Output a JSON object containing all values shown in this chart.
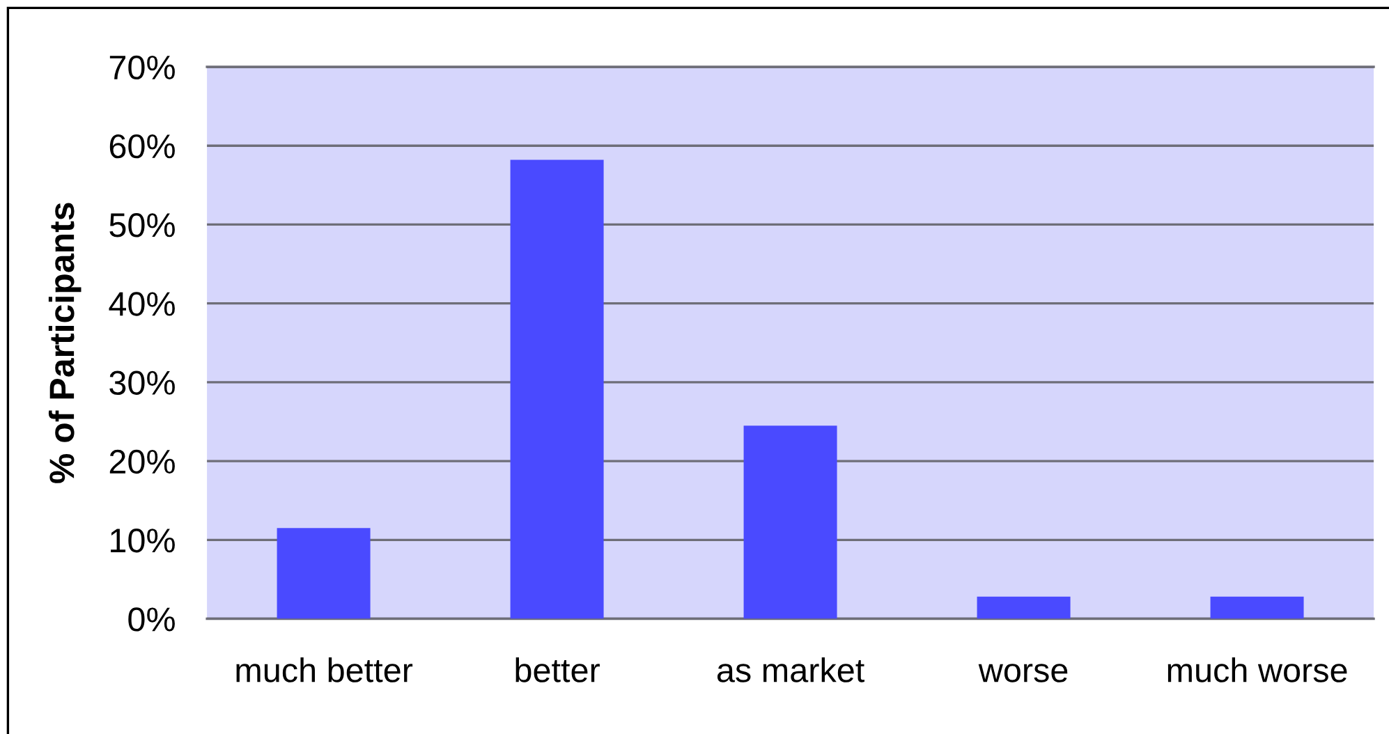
{
  "chart_data": {
    "type": "bar",
    "ylabel": "% of Participants",
    "categories": [
      "much better",
      "better",
      "as market",
      "worse",
      "much worse"
    ],
    "values": [
      11.5,
      58.2,
      24.5,
      2.8,
      2.8
    ],
    "color": "#4a4aff",
    "ylim": [
      0,
      70
    ],
    "yticks": [
      {
        "value": 0,
        "label": "0%"
      },
      {
        "value": 10,
        "label": "10%"
      },
      {
        "value": 20,
        "label": "20%"
      },
      {
        "value": 30,
        "label": "30%"
      },
      {
        "value": 40,
        "label": "40%"
      },
      {
        "value": 50,
        "label": "50%"
      },
      {
        "value": 60,
        "label": "60%"
      },
      {
        "value": 70,
        "label": "70%"
      }
    ],
    "grid": "y"
  }
}
